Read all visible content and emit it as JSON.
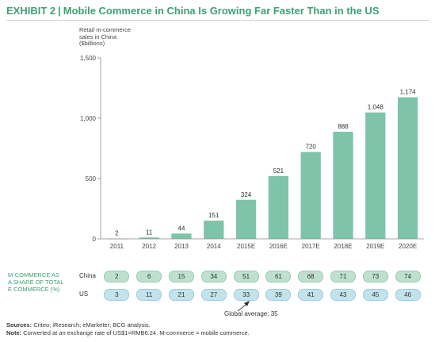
{
  "header": {
    "exhibit_label": "EXHIBIT 2",
    "separator": "|",
    "title": "Mobile Commerce in China Is Growing Far Faster Than in the US"
  },
  "colors": {
    "bar": "#7ec4a8",
    "title_green": "#3fa073",
    "china_pill": "#bfe0cf",
    "us_pill": "#c3e3ec"
  },
  "chart_data": {
    "type": "bar",
    "title": "Mobile Commerce in China Is Growing Far Faster Than in the US",
    "ylabel": "Retail m-commerce\nsales in China\n($billions)",
    "xlabel": "",
    "categories": [
      "2011",
      "2012",
      "2013",
      "2014",
      "2015E",
      "2016E",
      "2017E",
      "2018E",
      "2019E",
      "2020E"
    ],
    "values": [
      2,
      11,
      44,
      151,
      324,
      521,
      720,
      888,
      1048,
      1174
    ],
    "value_labels": [
      "2",
      "11",
      "44",
      "151",
      "324",
      "521",
      "720",
      "888",
      "1,048",
      "1,174"
    ],
    "ylim": [
      0,
      1500
    ],
    "yticks": [
      0,
      500,
      1000,
      1500
    ],
    "ytick_labels": [
      "0",
      "500",
      "1,000",
      "1,500"
    ],
    "grid": false,
    "legend": "none"
  },
  "share_table": {
    "label": "M-COMMERCE AS\nA SHARE OF TOTAL\nE COMMERCE (%)",
    "china_label": "China",
    "us_label": "US",
    "china": [
      "2",
      "6",
      "15",
      "34",
      "51",
      "61",
      "68",
      "71",
      "73",
      "74"
    ],
    "us": [
      "3",
      "11",
      "21",
      "27",
      "33",
      "39",
      "41",
      "43",
      "45",
      "46"
    ],
    "global_note": "Global average: 35"
  },
  "footer": {
    "sources_label": "Sources:",
    "sources_text": "Criteo; iResearch; eMarketer; BCG analysis.",
    "note_label": "Note:",
    "note_text": "Converted at an exchange rate of US$1=RMB6.24. M-commerce = mobile commerce."
  }
}
